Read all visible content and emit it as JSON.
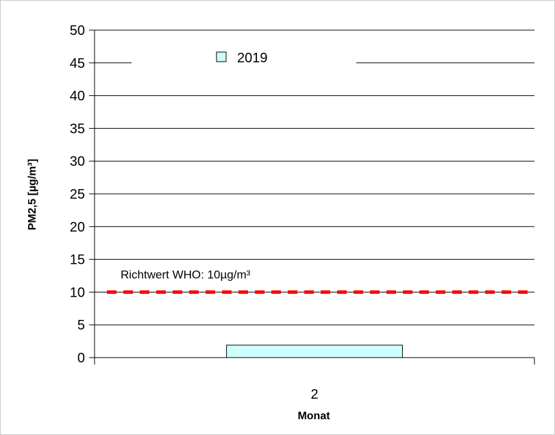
{
  "chart_data": {
    "type": "bar",
    "title": "",
    "xlabel": "Monat",
    "ylabel": "PM2,5 [µg/m³]",
    "ylim": [
      0,
      50
    ],
    "yticks": [
      0,
      5,
      10,
      15,
      20,
      25,
      30,
      35,
      40,
      45,
      50
    ],
    "categories": [
      "2"
    ],
    "series": [
      {
        "name": "2019",
        "values": [
          1.9
        ],
        "color": "#ccffff"
      }
    ],
    "reference_line": {
      "label": "Richtwert WHO: 10µg/m³",
      "value": 10,
      "color": "#ff0000",
      "style": "dashed"
    },
    "grid": true,
    "legend_position": "top"
  }
}
